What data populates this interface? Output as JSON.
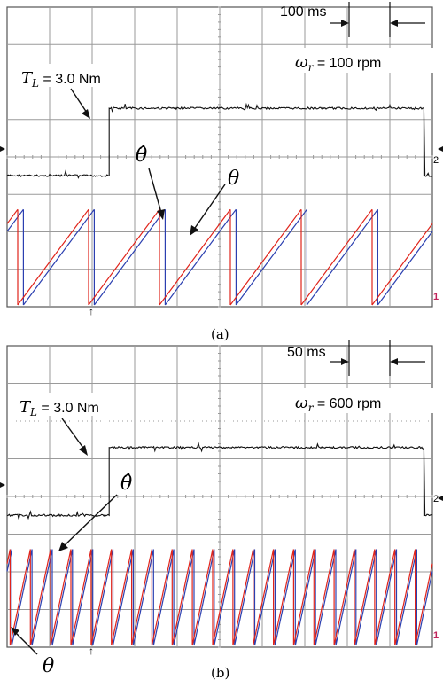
{
  "panels": [
    {
      "id": "a",
      "caption": "(a)",
      "time_marker": "100 ms",
      "speed_label": "ω_r = 100 rpm",
      "speed_symbol": "ω",
      "speed_sub": "r",
      "speed_value": " = 100 rpm",
      "load_label": "T_L = 3.0 Nm",
      "load_symbol": "T",
      "load_sub": "L",
      "load_value": " = 3.0 Nm",
      "theta_hat_label": "θ̂",
      "theta_label": "θ",
      "channel_marker_top": "2",
      "channel_marker_bottom": "1"
    },
    {
      "id": "b",
      "caption": "(b)",
      "time_marker": "50 ms",
      "speed_label": "ω_r = 600 rpm",
      "speed_symbol": "ω",
      "speed_sub": "r",
      "speed_value": " = 600 rpm",
      "load_label": "T_L = 3.0 Nm",
      "load_symbol": "T",
      "load_sub": "L",
      "load_value": " = 3.0 Nm",
      "theta_hat_label": "θ̂",
      "theta_label": "θ",
      "channel_marker_top": "2",
      "channel_marker_bottom": "1"
    }
  ],
  "colors": {
    "grid": "#9a9a9a",
    "border": "#555555",
    "torque_trace": "#111111",
    "theta_hat_trace": "#e0241b",
    "theta_trace": "#2b3fb0",
    "marker_1": "#c0245a"
  },
  "chart_data": [
    {
      "type": "line",
      "title": "(a)",
      "grid": true,
      "x_divisions": 10,
      "time_per_division": "100 ms",
      "series": [
        {
          "name": "T_L",
          "level_low": 0,
          "level_high": 3.0,
          "step_up_division": 2.4,
          "step_down_division": 9.8,
          "unit": "Nm"
        },
        {
          "name": "θ̂",
          "waveform": "sawtooth",
          "periods_visible": 6,
          "min": 0,
          "max": 1
        },
        {
          "name": "θ",
          "waveform": "sawtooth",
          "periods_visible": 6,
          "min": 0,
          "max": 1
        }
      ]
    },
    {
      "type": "line",
      "title": "(b)",
      "grid": true,
      "x_divisions": 10,
      "time_per_division": "50 ms",
      "series": [
        {
          "name": "T_L",
          "level_low": 0,
          "level_high": 3.0,
          "step_up_division": 2.4,
          "step_down_division": 9.8,
          "unit": "Nm"
        },
        {
          "name": "θ̂",
          "waveform": "sawtooth",
          "periods_visible": 21,
          "min": 0,
          "max": 1
        },
        {
          "name": "θ",
          "waveform": "sawtooth",
          "periods_visible": 21,
          "min": 0,
          "max": 1
        }
      ]
    }
  ]
}
